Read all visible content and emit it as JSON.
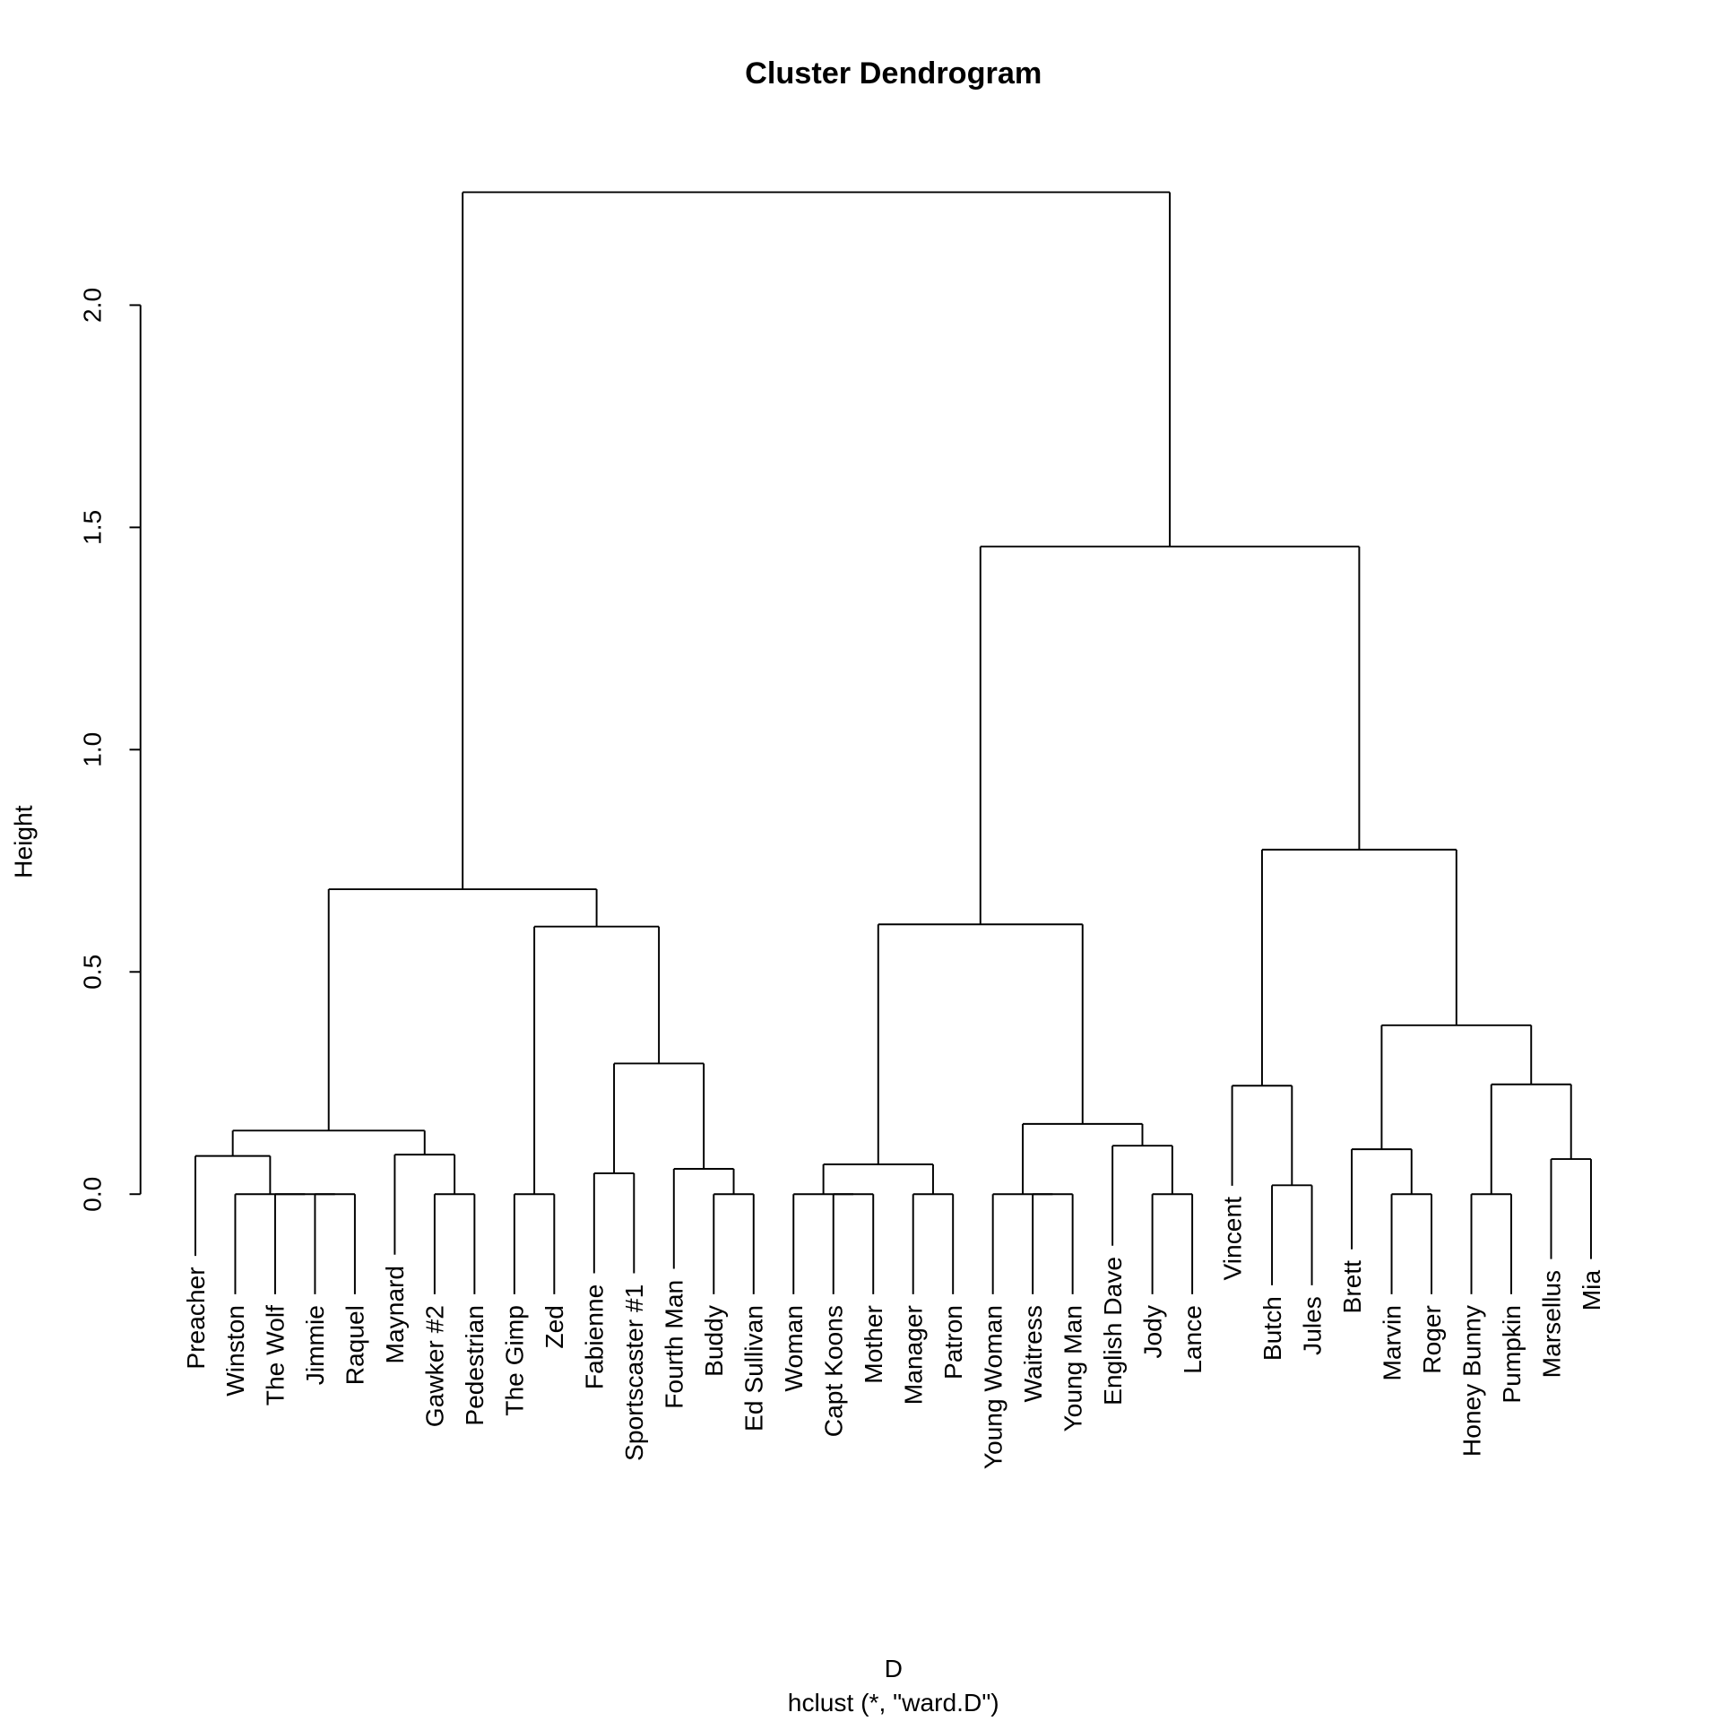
{
  "chart_data": {
    "type": "dendrogram",
    "title": "Cluster Dendrogram",
    "xlabel": "D",
    "sublabel": "hclust (*, \"ward.D\")",
    "ylabel": "Height",
    "ylim": [
      0,
      2.254
    ],
    "yticks": [
      "0.0",
      "0.5",
      "1.0",
      "1.5",
      "2.0"
    ],
    "ytick_values": [
      0,
      0.5,
      1.0,
      1.5,
      2.0
    ],
    "tree": {
      "h": 2.254,
      "c": [
        {
          "h": 0.686,
          "c": [
            {
              "h": 0.143,
              "c": [
                {
                  "h": 0.086,
                  "c": [
                    {
                      "n": "Preacher"
                    },
                    {
                      "h": 0,
                      "c": [
                        {
                          "n": "Winston"
                        },
                        {
                          "n": "The Wolf"
                        },
                        {
                          "n": "Jimmie"
                        },
                        {
                          "n": "Raquel"
                        }
                      ]
                    }
                  ]
                },
                {
                  "h": 0.089,
                  "c": [
                    {
                      "n": "Maynard"
                    },
                    {
                      "h": 0,
                      "c": [
                        {
                          "n": "Gawker #2"
                        },
                        {
                          "n": "Pedestrian"
                        }
                      ]
                    }
                  ]
                }
              ]
            },
            {
              "h": 0.602,
              "c": [
                {
                  "h": 0,
                  "c": [
                    {
                      "n": "The Gimp"
                    },
                    {
                      "n": "Zed"
                    }
                  ]
                },
                {
                  "h": 0.294,
                  "c": [
                    {
                      "h": 0.047,
                      "c": [
                        {
                          "n": "Fabienne"
                        },
                        {
                          "n": "Sportscaster #1"
                        }
                      ]
                    },
                    {
                      "h": 0.057,
                      "c": [
                        {
                          "n": "Fourth Man"
                        },
                        {
                          "h": 0,
                          "c": [
                            {
                              "n": "Buddy"
                            },
                            {
                              "n": "Ed Sullivan"
                            }
                          ]
                        }
                      ]
                    }
                  ]
                }
              ]
            }
          ]
        },
        {
          "h": 1.457,
          "c": [
            {
              "h": 0.607,
              "c": [
                {
                  "h": 0.067,
                  "c": [
                    {
                      "h": 0,
                      "c": [
                        {
                          "n": "Woman"
                        },
                        {
                          "n": "Capt Koons"
                        },
                        {
                          "n": "Mother"
                        }
                      ]
                    },
                    {
                      "h": 0,
                      "c": [
                        {
                          "n": "Manager"
                        },
                        {
                          "n": "Patron"
                        }
                      ]
                    }
                  ]
                },
                {
                  "h": 0.158,
                  "c": [
                    {
                      "h": 0,
                      "c": [
                        {
                          "n": "Young Woman"
                        },
                        {
                          "n": "Waitress"
                        },
                        {
                          "n": "Young Man"
                        }
                      ]
                    },
                    {
                      "h": 0.109,
                      "c": [
                        {
                          "n": "English Dave"
                        },
                        {
                          "h": 0,
                          "c": [
                            {
                              "n": "Jody"
                            },
                            {
                              "n": "Lance"
                            }
                          ]
                        }
                      ]
                    }
                  ]
                }
              ]
            },
            {
              "h": 0.775,
              "c": [
                {
                  "h": 0.244,
                  "c": [
                    {
                      "n": "Vincent"
                    },
                    {
                      "h": 0.02,
                      "c": [
                        {
                          "n": "Butch"
                        },
                        {
                          "n": "Jules"
                        }
                      ]
                    }
                  ]
                },
                {
                  "h": 0.38,
                  "c": [
                    {
                      "h": 0.101,
                      "c": [
                        {
                          "n": "Brett"
                        },
                        {
                          "h": 0,
                          "c": [
                            {
                              "n": "Marvin"
                            },
                            {
                              "n": "Roger"
                            }
                          ]
                        }
                      ]
                    },
                    {
                      "h": 0.247,
                      "c": [
                        {
                          "h": 0,
                          "c": [
                            {
                              "n": "Honey Bunny"
                            },
                            {
                              "n": "Pumpkin"
                            }
                          ]
                        },
                        {
                          "h": 0.079,
                          "c": [
                            {
                              "n": "Marsellus"
                            },
                            {
                              "n": "Mia"
                            }
                          ]
                        }
                      ]
                    }
                  ]
                }
              ]
            }
          ]
        }
      ]
    }
  }
}
